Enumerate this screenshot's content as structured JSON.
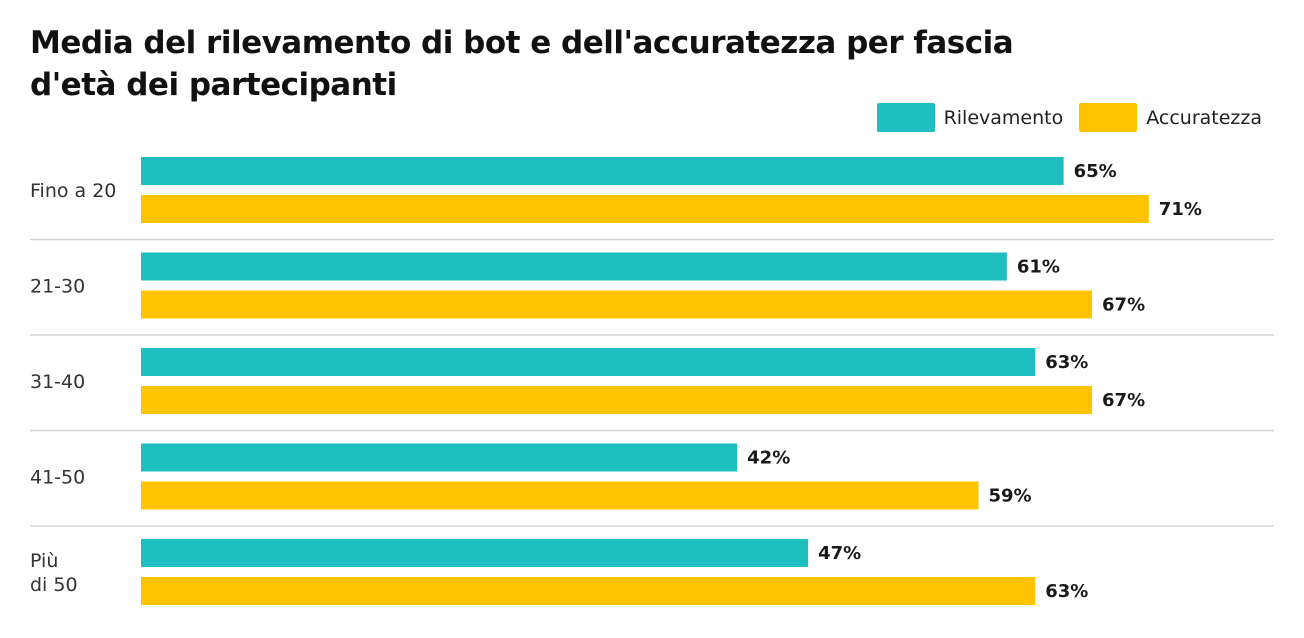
{
  "chart_data": {
    "type": "bar",
    "orientation": "horizontal",
    "title": "Media del rilevamento di bot e dell'accuratezza per fascia d'età dei partecipanti",
    "categories": [
      [
        "Fino a 20"
      ],
      [
        "21-30"
      ],
      [
        "31-40"
      ],
      [
        "41-50"
      ],
      [
        "Più",
        "di 50"
      ]
    ],
    "series": [
      {
        "name": "Rilevamento",
        "color": "#1FBFBF",
        "values": [
          65,
          61,
          63,
          42,
          47
        ]
      },
      {
        "name": "Accuratezza",
        "color": "#FFC300",
        "values": [
          71,
          67,
          67,
          59,
          63
        ]
      }
    ],
    "value_suffix": "%",
    "xlim": [
      0,
      72
    ],
    "legend_position": "top-right",
    "grid": false
  }
}
